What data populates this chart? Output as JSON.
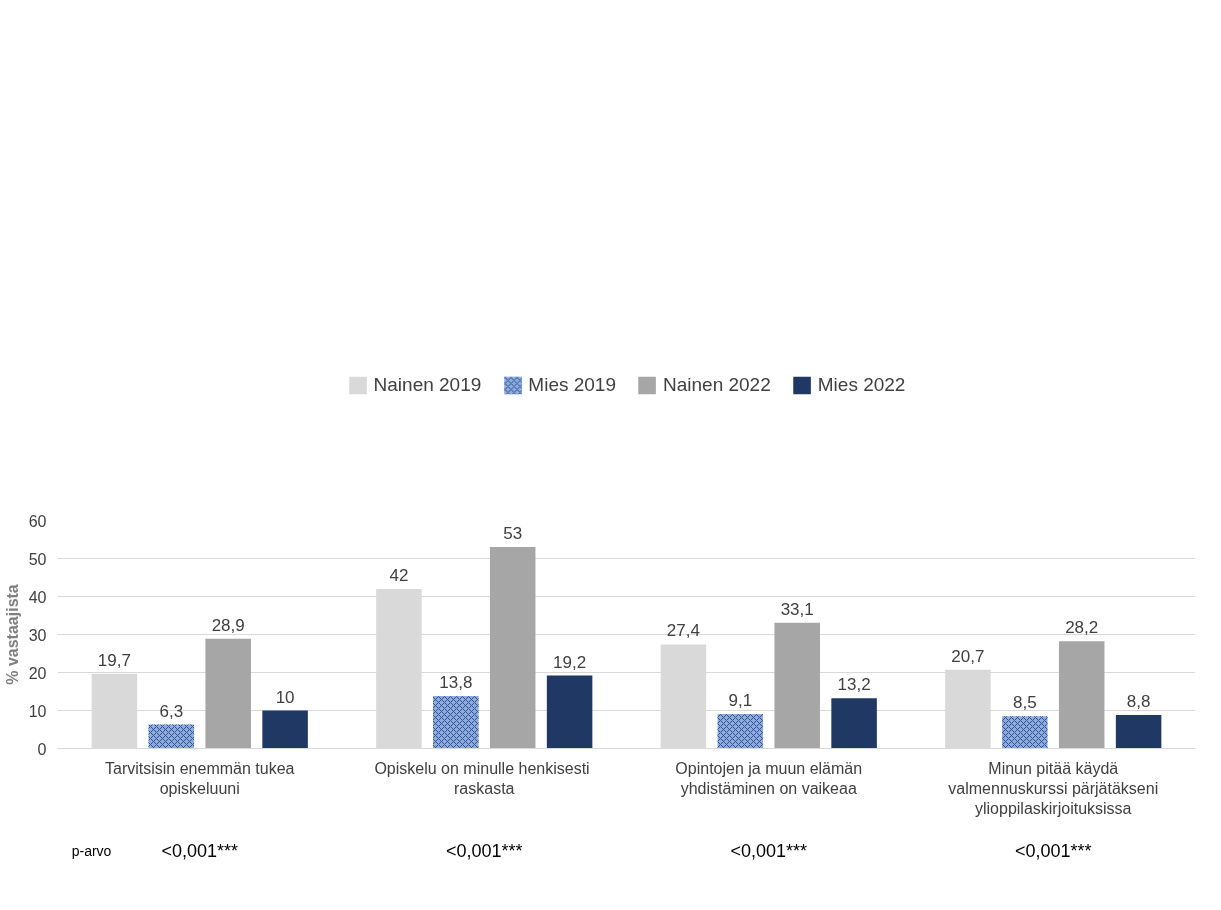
{
  "chart_data": {
    "type": "bar",
    "ylabel": "% vastaajista",
    "categories": [
      "Tarvitsisin enemmän tukea opiskeluuni",
      "Opiskelu on  minulle henkisesti raskasta",
      "Opintojen ja muun elämän yhdistäminen on vaikeaa",
      "Minun pitää käydä valmennuskurssi pärjätäkseni ylioppilaskirjoituksissa"
    ],
    "series": [
      {
        "name": "Nainen 2019",
        "color": "#d9d9d9",
        "values": [
          19.7,
          42,
          27.4,
          20.7
        ],
        "value_labels": [
          "19,7",
          "42",
          "27,4",
          "20,7"
        ]
      },
      {
        "name": "Mies 2019",
        "color": "#8faadc",
        "values": [
          6.3,
          13.8,
          9.1,
          8.5
        ],
        "value_labels": [
          "6,3",
          "13,8",
          "9,1",
          "8,5"
        ]
      },
      {
        "name": "Nainen 2022",
        "color": "#a6a6a6",
        "values": [
          28.9,
          53,
          33.1,
          28.2
        ],
        "value_labels": [
          "28,9",
          "53",
          "33,1",
          "28,2"
        ]
      },
      {
        "name": "Mies 2022",
        "color": "#203864",
        "values": [
          10,
          19.2,
          13.2,
          8.8
        ],
        "value_labels": [
          "10",
          "19,2",
          "13,2",
          "8,8"
        ]
      }
    ],
    "ylim": [
      0,
      60
    ],
    "yticks": [
      0,
      10,
      20,
      30,
      40,
      50,
      60
    ],
    "grid": "y",
    "legend": "top",
    "annotations": [
      "p-arvo",
      "<0,001***",
      "<0,001***",
      "<0,001***",
      "<0,001***"
    ]
  }
}
